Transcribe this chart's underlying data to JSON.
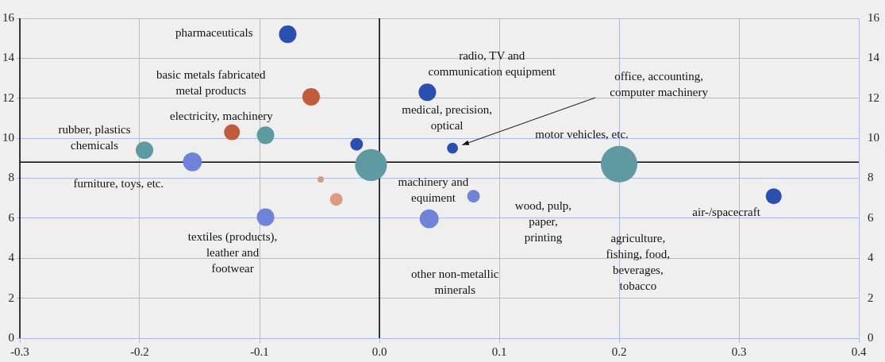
{
  "chart_data": {
    "type": "bubble",
    "x": [
      -0.0765,
      -0.057,
      -0.123,
      -0.095,
      -0.196,
      -0.156,
      -0.019,
      -0.007,
      -0.049,
      -0.036,
      -0.095,
      0.04,
      0.061,
      0.2,
      0.0785,
      0.0415,
      0.329
    ],
    "values": [
      15.2,
      12.07,
      10.3,
      10.15,
      9.4,
      8.82,
      9.7,
      8.66,
      7.94,
      6.94,
      6.05,
      12.3,
      9.5,
      8.7,
      7.1,
      5.97,
      7.1
    ],
    "sizes": [
      0.23,
      0.23,
      0.19,
      0.23,
      0.23,
      0.27,
      0.12,
      0.76,
      0.03,
      0.12,
      0.23,
      0.23,
      0.09,
      1,
      0.12,
      0.27,
      0.19
    ],
    "colors": [
      "#2b4fae",
      "#c25a3c",
      "#c25a3c",
      "#5f9aa3",
      "#5f9aa3",
      "#7083d8",
      "#2b4fae",
      "#5f9aa3",
      "#dc9a82",
      "#dc9a82",
      "#7083d8",
      "#2b4fae",
      "#2b4fae",
      "#5f9aa3",
      "#7083d8",
      "#7083d8",
      "#2b4fae"
    ],
    "xlim": [
      -0.3,
      0.4
    ],
    "xticks": [
      -0.3,
      -0.2,
      -0.1,
      {
        "value": 0,
        "label": "0.0"
      },
      0.1,
      0.2,
      0.3,
      0.4
    ],
    "ylim": [
      0,
      16
    ],
    "yticks": [
      0,
      2,
      4,
      6,
      8,
      10,
      12,
      14,
      16
    ],
    "y2lim": [
      0,
      16
    ],
    "y2ticks": [
      0,
      2,
      4,
      6,
      8,
      10,
      12,
      14,
      16
    ],
    "grid": true,
    "ref_lines": [
      {
        "axis": "x",
        "value": 0,
        "color": "#000000"
      },
      {
        "axis": "y",
        "value": 8.8,
        "color": "#000000"
      }
    ],
    "annotations": [
      "pharmaceuticals",
      "basic metals fabricated\nmetal products",
      "electricity, machinery",
      "rubber, plastics\nchemicals",
      "furniture, toys, etc.",
      "textiles (products),\nleather and\nfootwear",
      "radio, TV and\ncommunication equipment",
      "medical, precision,\noptical",
      "office, accounting,\ncomputer machinery",
      "motor vehicles, etc.",
      "machinery and\nequiment",
      "wood, pulp,\npaper,\nprinting",
      "air-/spacecraft",
      "other non-metallic\nminerals",
      "agriculture,\nfishing, food,\nbeverages,\ntobacco"
    ]
  }
}
